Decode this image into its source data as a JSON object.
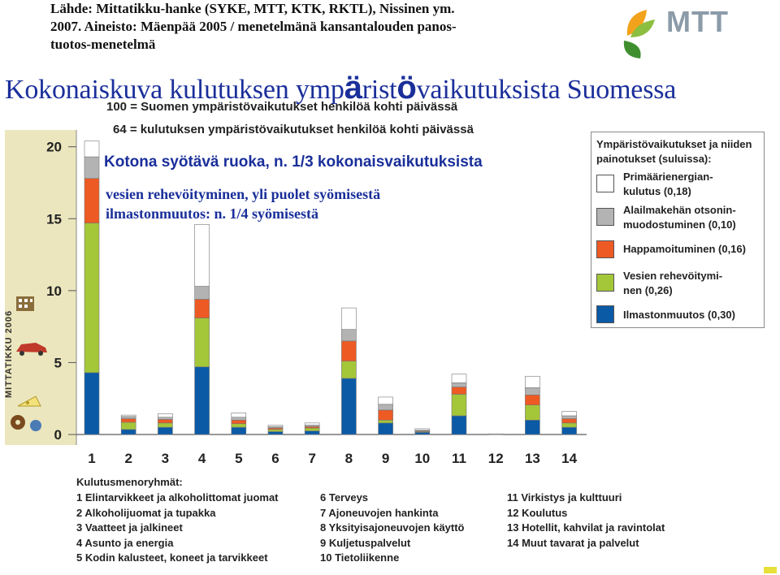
{
  "header": {
    "source_line1": "Lähde: Mittatikku-hanke (SYKE, MTT, KTK, RKTL), Nissinen ym.",
    "source_line2": "2007. Aineisto: Mäenpää 2005 / menetelmänä kansantalouden panos-",
    "source_line3": "tuotos-menetelmä",
    "logo_text": "MTT"
  },
  "title": {
    "part1": "Kokonaiskuva kulutuksen ymp",
    "part2": "ä",
    "part3": "rist",
    "part4": "ö",
    "part5": "vaikutuksista Suomessa"
  },
  "notes": {
    "line1": "100 = Suomen ympäristövaikutukset henkilöä kohti päivässä",
    "line2": "64 = kulutuksen ympäristövaikutukset henkilöä kohti päivässä"
  },
  "annotations": {
    "food": "Kotona syötävä ruoka, n. 1/3 kokonaisvaikutuksista",
    "eutro": "vesien rehevöityminen, yli puolet syömisestä",
    "climate": "ilmastonmuutos: n. 1/4 syömisestä"
  },
  "side_label": "MITTATIKKU 2006",
  "colors": {
    "primary_energy": "#ffffff",
    "ozone": "#b3b3b3",
    "acidification": "#ee5a24",
    "eutrophication": "#a4c639",
    "climate": "#0b5aa6",
    "title_blue": "#1a2f9a",
    "left_strip": "#ebe6bd"
  },
  "legend": {
    "title": "Ympäristövaikutukset ja niiden painotukset (suluissa):",
    "items": [
      {
        "label_line1": "Primäärienergian-",
        "label_line2": "kulutus (0,18)",
        "color": "#ffffff"
      },
      {
        "label_line1": "Alailmakehän otsonin-",
        "label_line2": "muodostuminen (0,10)",
        "color": "#b3b3b3"
      },
      {
        "label_line1": "Happamoituminen (0,16)",
        "label_line2": "",
        "color": "#ee5a24"
      },
      {
        "label_line1": "Vesien rehevöitymi-",
        "label_line2": "nen (0,26)",
        "color": "#a4c639"
      },
      {
        "label_line1": "Ilmastonmuutos (0,30)",
        "label_line2": "",
        "color": "#0b5aa6"
      }
    ]
  },
  "groups": {
    "title": "Kulutusmenoryhmät:",
    "col1": [
      "1  Elintarvikkeet ja alkoholittomat juomat",
      "2  Alkoholijuomat ja tupakka",
      "3  Vaatteet ja jalkineet",
      "4  Asunto ja energia",
      "5  Kodin kalusteet, koneet ja tarvikkeet"
    ],
    "col2": [
      "6  Terveys",
      "7  Ajoneuvojen hankinta",
      "8  Yksityisajoneuvojen käyttö",
      "9  Kuljetuspalvelut",
      "10  Tietoliikenne"
    ],
    "col3": [
      "11  Virkistys ja kulttuuri",
      "12  Koulutus",
      "13  Hotellit, kahvilat ja ravintolat",
      "14  Muut tavarat ja palvelut"
    ]
  },
  "chart_data": {
    "type": "bar",
    "stacked": true,
    "categories": [
      "1",
      "2",
      "3",
      "4",
      "5",
      "6",
      "7",
      "8",
      "9",
      "10",
      "11",
      "12",
      "13",
      "14"
    ],
    "ylim": [
      0,
      21
    ],
    "yticks": [
      0,
      5,
      10,
      15,
      20
    ],
    "ytick_labels": [
      "0",
      "5",
      "10",
      "15",
      "20"
    ],
    "series": [
      {
        "name": "Ilmastonmuutos (0,30)",
        "color": "#0b5aa6",
        "values": [
          4.3,
          0.35,
          0.5,
          4.7,
          0.5,
          0.2,
          0.25,
          3.9,
          0.8,
          0.15,
          1.3,
          0.0,
          1.0,
          0.5
        ]
      },
      {
        "name": "Vesien rehevöitymi-nen (0,26)",
        "color": "#a4c639",
        "values": [
          10.4,
          0.5,
          0.3,
          3.4,
          0.25,
          0.15,
          0.2,
          1.2,
          0.2,
          0.05,
          1.5,
          0.0,
          1.05,
          0.3
        ]
      },
      {
        "name": "Happamoituminen (0,16)",
        "color": "#ee5a24",
        "values": [
          3.1,
          0.25,
          0.25,
          1.3,
          0.25,
          0.1,
          0.1,
          1.4,
          0.7,
          0.05,
          0.5,
          0.0,
          0.7,
          0.3
        ]
      },
      {
        "name": "Alailmakehän otsonin-muodostuminen (0,10)",
        "color": "#b3b3b3",
        "values": [
          1.5,
          0.15,
          0.15,
          0.9,
          0.2,
          0.1,
          0.1,
          0.8,
          0.4,
          0.05,
          0.3,
          0.0,
          0.5,
          0.2
        ]
      },
      {
        "name": "Primäärienergian-kulutus (0,18)",
        "color": "#ffffff",
        "values": [
          1.1,
          0.1,
          0.25,
          4.3,
          0.3,
          0.1,
          0.15,
          1.5,
          0.5,
          0.1,
          0.6,
          0.05,
          0.8,
          0.3
        ]
      }
    ]
  }
}
